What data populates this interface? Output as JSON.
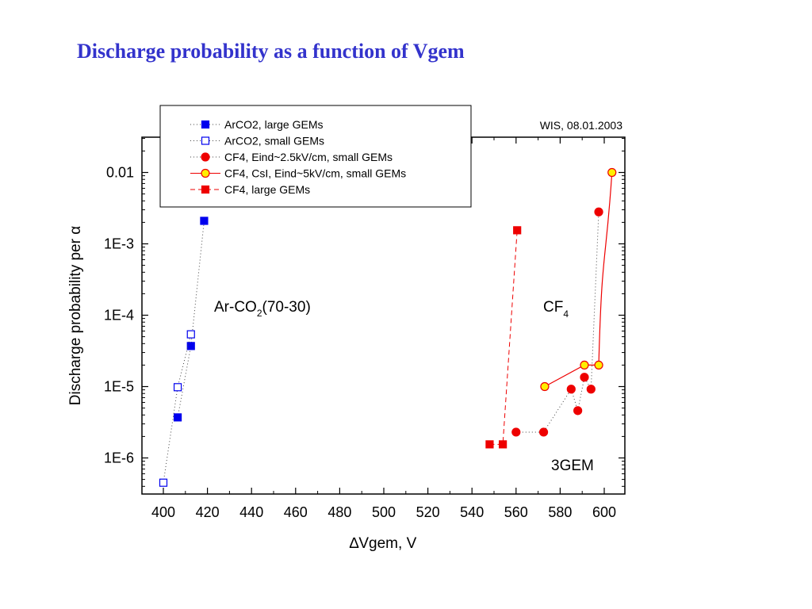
{
  "slide": {
    "title": "Discharge probability as a function of Vgem"
  },
  "colors": {
    "title": "#3333cc",
    "blue": "#0000ee",
    "red": "#ee0000",
    "yellow": "#ffee00"
  },
  "chart_data": {
    "type": "scatter",
    "xlabel": "∆Vgem, V",
    "ylabel": "Discharge probability per α",
    "xlim": [
      390,
      610
    ],
    "ylim": [
      3e-07,
      0.03
    ],
    "y_scale": "log",
    "x_ticks": [
      400,
      420,
      440,
      460,
      480,
      500,
      520,
      540,
      560,
      580,
      600
    ],
    "y_ticks": [
      {
        "value": 0.01,
        "label": "0.01"
      },
      {
        "value": 0.001,
        "label": "1E-3"
      },
      {
        "value": 0.0001,
        "label": "1E-4"
      },
      {
        "value": 1e-05,
        "label": "1E-5"
      },
      {
        "value": 1e-06,
        "label": "1E-6"
      }
    ],
    "grid": false,
    "legend_position": "top-left",
    "annotations": {
      "arco2_label": "Ar-CO",
      "arco2_sub": "2",
      "arco2_rest": "(70-30)",
      "cf4_label": "CF",
      "cf4_sub": "4",
      "gem_label": "3GEM",
      "stamp": "WIS, 08.01.2003"
    },
    "series": [
      {
        "name": "ArCO2, large GEMs",
        "color": "#0000ee",
        "marker": "square",
        "filled": true,
        "line": "dotted",
        "x": [
          406.5,
          412.5,
          418.5
        ],
        "y": [
          3.7e-06,
          3.7e-05,
          0.0021
        ]
      },
      {
        "name": "ArCO2, small GEMs",
        "color": "#0000ee",
        "marker": "square",
        "filled": false,
        "line": "dotted",
        "x": [
          400,
          406.5,
          412.5
        ],
        "y": [
          4.5e-07,
          9.8e-06,
          5.4e-05
        ]
      },
      {
        "name": "CF4, Eind~2.5kV/cm, small GEMs",
        "color": "#ee0000",
        "marker": "circle",
        "filled": true,
        "line": "dotted",
        "x": [
          560,
          572.5,
          588,
          585,
          594,
          591,
          597.5
        ],
        "y": [
          2.3e-06,
          2.3e-06,
          4.6e-06,
          9.2e-06,
          9.2e-06,
          1.35e-05,
          0.0028
        ]
      },
      {
        "name": "CF4, CsI, Eind~5kV/cm, small GEMs",
        "color": "#ee0000",
        "marker": "circle",
        "fill": "#ffee00",
        "filled": true,
        "line": "solid",
        "x": [
          573,
          591,
          597.5,
          603.5
        ],
        "y": [
          1e-05,
          2e-05,
          2e-05,
          0.01
        ]
      },
      {
        "name": "CF4, large GEMs",
        "color": "#ee0000",
        "marker": "square",
        "filled": true,
        "line": "dashed",
        "x": [
          548,
          554,
          560.5
        ],
        "y": [
          1.55e-06,
          1.55e-06,
          0.00155
        ]
      }
    ]
  }
}
